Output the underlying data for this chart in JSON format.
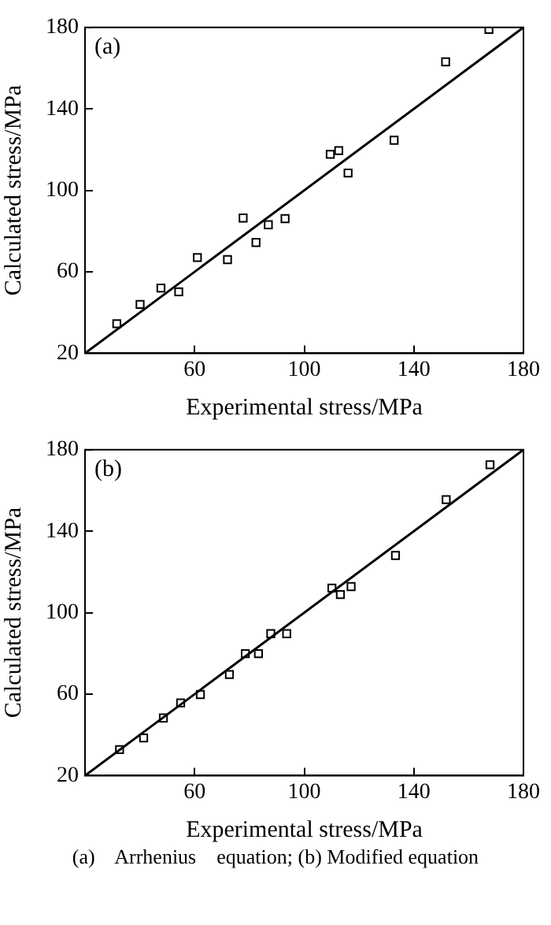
{
  "chart_data": [
    {
      "type": "scatter",
      "xlabel": "Experimental stress/MPa",
      "ylabel": "Calculated stress/MPa",
      "annotations": [
        "(a)"
      ],
      "xlim": [
        20,
        180
      ],
      "ylim": [
        20,
        180
      ],
      "xticks": [
        {
          "value": 20,
          "label": null
        },
        60,
        100,
        140,
        180
      ],
      "yticks": [
        20,
        60,
        100,
        140,
        180
      ],
      "grid": false,
      "legend": false,
      "marker": "square",
      "series": [
        {
          "color": "#000000",
          "x": [
            31.6,
            40.1,
            47.7,
            54.2,
            61,
            72,
            77.7,
            82.4,
            86.9,
            93,
            109.5,
            112.6,
            116,
            132.8,
            151.6,
            167.4
          ],
          "values": [
            34.5,
            44,
            52,
            50.2,
            67,
            66,
            86.4,
            74.4,
            83.1,
            86.1,
            117.7,
            119.5,
            108.5,
            124.6,
            163.1,
            179
          ]
        },
        {
          "type": "line",
          "color": "#000000",
          "x": [
            20,
            180
          ],
          "values": [
            20,
            180
          ],
          "marker": "none",
          "line_style": "solid"
        }
      ]
    },
    {
      "type": "scatter",
      "xlabel": "Experimental stress/MPa",
      "ylabel": "Calculated stress/MPa",
      "annotations": [
        "(b)",
        "(a)    Arrhenius    equation; (b) Modified equation"
      ],
      "xlim": [
        20,
        180
      ],
      "ylim": [
        20,
        180
      ],
      "xticks": [
        {
          "value": 20,
          "label": null
        },
        60,
        100,
        140,
        180
      ],
      "yticks": [
        20,
        60,
        100,
        140,
        180
      ],
      "grid": false,
      "legend": false,
      "marker": "square",
      "series": [
        {
          "color": "#000000",
          "x": [
            32.6,
            41.4,
            48.6,
            54.9,
            62.1,
            72.7,
            78.5,
            83.3,
            87.8,
            93.6,
            110.1,
            113.2,
            117.1,
            133.3,
            151.8,
            167.8
          ],
          "values": [
            32.8,
            38.5,
            48.3,
            55.7,
            59.8,
            69.6,
            79.9,
            79.9,
            89.7,
            89.7,
            112.1,
            108.9,
            112.8,
            128.1,
            155.5,
            172.6
          ]
        },
        {
          "type": "line",
          "color": "#000000",
          "x": [
            20,
            180
          ],
          "values": [
            20,
            180
          ],
          "marker": "none",
          "line_style": "solid"
        }
      ]
    }
  ]
}
